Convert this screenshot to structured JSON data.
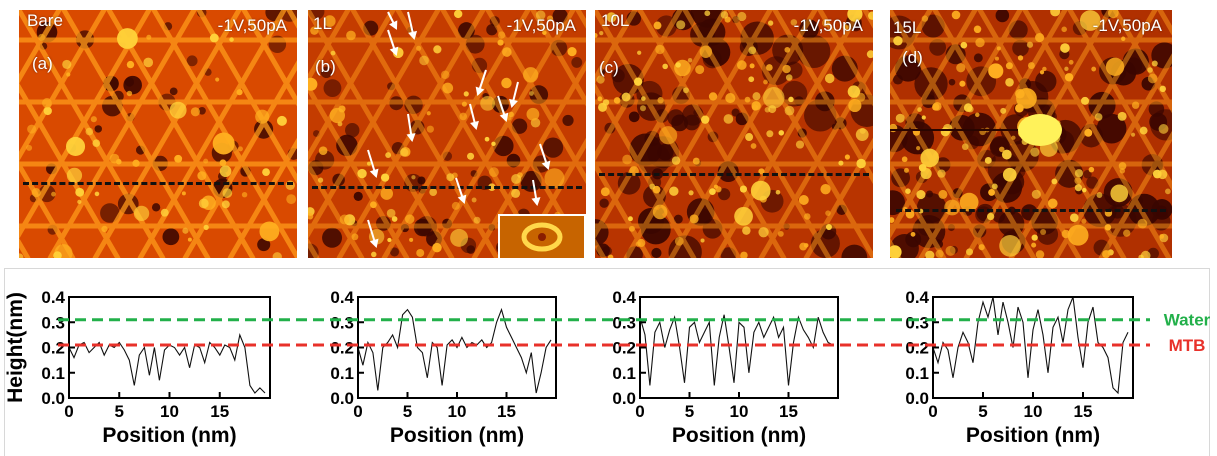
{
  "panels": [
    {
      "name": "Bare",
      "letter": "(a)",
      "bias": "-1V,50pA",
      "hue": "#d94a00"
    },
    {
      "name": "1L",
      "letter": "(b)",
      "bias": "-1V,50pA",
      "hue": "#c43c00"
    },
    {
      "name": "10L",
      "letter": "(c)",
      "bias": "-1V,50pA",
      "hue": "#b83400"
    },
    {
      "name": "15L",
      "letter": "(d)",
      "bias": "-1V,50pA",
      "hue": "#b03000"
    }
  ],
  "reference_lines": {
    "water": {
      "label": "Water",
      "value": 0.31,
      "color": "#22b04a"
    },
    "mtb": {
      "label": "MTB",
      "value": 0.21,
      "color": "#e8312a"
    }
  },
  "chart_data": [
    {
      "type": "line",
      "title": "",
      "xlabel": "Position (nm)",
      "ylabel": "Height(nm)",
      "xlim": [
        0,
        20
      ],
      "ylim": [
        0.0,
        0.4
      ],
      "xticks": [
        0,
        5,
        10,
        15
      ],
      "yticks": [
        0.0,
        0.1,
        0.2,
        0.3,
        0.4
      ],
      "ytick_labels": [
        "0.0",
        "0.1",
        "0.2",
        "0.3",
        "0.4"
      ],
      "series": [
        {
          "x": [
            0,
            0.5,
            1,
            1.5,
            2,
            2.5,
            3,
            3.5,
            4,
            4.5,
            5,
            5.5,
            6,
            6.5,
            7,
            7.5,
            8,
            8.5,
            9,
            9.5,
            10,
            10.5,
            11,
            11.5,
            12,
            12.5,
            13,
            13.5,
            14,
            14.5,
            15,
            15.5,
            16,
            16.5,
            17,
            17.5,
            18,
            18.5,
            19,
            19.5
          ],
          "y": [
            0.2,
            0.16,
            0.21,
            0.22,
            0.18,
            0.2,
            0.22,
            0.17,
            0.21,
            0.2,
            0.22,
            0.19,
            0.15,
            0.05,
            0.17,
            0.2,
            0.09,
            0.2,
            0.07,
            0.19,
            0.21,
            0.2,
            0.17,
            0.2,
            0.12,
            0.21,
            0.2,
            0.14,
            0.22,
            0.2,
            0.17,
            0.21,
            0.2,
            0.15,
            0.25,
            0.2,
            0.05,
            0.02,
            0.04,
            0.02
          ]
        }
      ]
    },
    {
      "type": "line",
      "title": "",
      "xlabel": "Position (nm)",
      "ylabel": "",
      "xlim": [
        0,
        20
      ],
      "ylim": [
        0.0,
        0.4
      ],
      "xticks": [
        0,
        5,
        10,
        15
      ],
      "yticks": [
        0.0,
        0.1,
        0.2,
        0.3,
        0.4
      ],
      "ytick_labels": [
        "0.0",
        "0.1",
        "0.2",
        "0.3",
        "0.4"
      ],
      "series": [
        {
          "x": [
            0,
            0.5,
            1,
            1.5,
            2,
            2.5,
            3,
            3.5,
            4,
            4.5,
            5,
            5.5,
            6,
            6.5,
            7,
            7.5,
            8,
            8.5,
            9,
            9.5,
            10,
            10.5,
            11,
            11.5,
            12,
            12.5,
            13,
            13.5,
            14,
            14.5,
            15,
            15.5,
            16,
            16.5,
            17,
            17.5,
            18,
            18.5,
            19,
            19.5
          ],
          "y": [
            0.2,
            0.13,
            0.22,
            0.18,
            0.03,
            0.2,
            0.22,
            0.25,
            0.2,
            0.33,
            0.35,
            0.32,
            0.2,
            0.18,
            0.08,
            0.22,
            0.2,
            0.05,
            0.21,
            0.23,
            0.2,
            0.24,
            0.2,
            0.22,
            0.21,
            0.23,
            0.2,
            0.22,
            0.3,
            0.35,
            0.28,
            0.24,
            0.2,
            0.16,
            0.1,
            0.18,
            0.02,
            0.1,
            0.2,
            0.23
          ]
        }
      ]
    },
    {
      "type": "line",
      "title": "",
      "xlabel": "Position (nm)",
      "ylabel": "",
      "xlim": [
        0,
        20
      ],
      "ylim": [
        0.0,
        0.4
      ],
      "xticks": [
        0,
        5,
        10,
        15
      ],
      "yticks": [
        0.0,
        0.1,
        0.2,
        0.3,
        0.4
      ],
      "ytick_labels": [
        "0.0",
        "0.1",
        "0.2",
        "0.3",
        "0.4"
      ],
      "series": [
        {
          "x": [
            0,
            0.5,
            1,
            1.5,
            2,
            2.5,
            3,
            3.5,
            4,
            4.5,
            5,
            5.5,
            6,
            6.5,
            7,
            7.5,
            8,
            8.5,
            9,
            9.5,
            10,
            10.5,
            11,
            11.5,
            12,
            12.5,
            13,
            13.5,
            14,
            14.5,
            15,
            15.5,
            16,
            16.5,
            17,
            17.5,
            18,
            18.5,
            19,
            19.5
          ],
          "y": [
            0.32,
            0.25,
            0.05,
            0.26,
            0.3,
            0.2,
            0.27,
            0.32,
            0.2,
            0.06,
            0.28,
            0.3,
            0.22,
            0.26,
            0.3,
            0.05,
            0.24,
            0.33,
            0.2,
            0.06,
            0.3,
            0.28,
            0.1,
            0.26,
            0.3,
            0.24,
            0.28,
            0.32,
            0.24,
            0.28,
            0.05,
            0.22,
            0.32,
            0.27,
            0.24,
            0.2,
            0.32,
            0.26,
            0.22,
            0.21
          ]
        }
      ]
    },
    {
      "type": "line",
      "title": "",
      "xlabel": "Position (nm)",
      "ylabel": "",
      "xlim": [
        0,
        20
      ],
      "ylim": [
        0.0,
        0.4
      ],
      "xticks": [
        0,
        5,
        10,
        15
      ],
      "yticks": [
        0.0,
        0.1,
        0.2,
        0.3,
        0.4
      ],
      "ytick_labels": [
        "0.0",
        "0.1",
        "0.2",
        "0.3",
        "0.4"
      ],
      "series": [
        {
          "x": [
            0,
            0.5,
            1,
            1.5,
            2,
            2.5,
            3,
            3.5,
            4,
            4.5,
            5,
            5.5,
            6,
            6.5,
            7,
            7.5,
            8,
            8.5,
            9,
            9.5,
            10,
            10.5,
            11,
            11.5,
            12,
            12.5,
            13,
            13.5,
            14,
            14.5,
            15,
            15.5,
            16,
            16.5,
            17,
            17.5,
            18,
            18.5,
            19,
            19.5
          ],
          "y": [
            0.2,
            0.14,
            0.22,
            0.19,
            0.08,
            0.2,
            0.26,
            0.22,
            0.14,
            0.3,
            0.38,
            0.32,
            0.4,
            0.25,
            0.38,
            0.3,
            0.2,
            0.36,
            0.3,
            0.08,
            0.27,
            0.35,
            0.25,
            0.1,
            0.28,
            0.32,
            0.22,
            0.35,
            0.4,
            0.24,
            0.12,
            0.3,
            0.36,
            0.22,
            0.2,
            0.16,
            0.04,
            0.02,
            0.22,
            0.26
          ]
        }
      ]
    }
  ]
}
